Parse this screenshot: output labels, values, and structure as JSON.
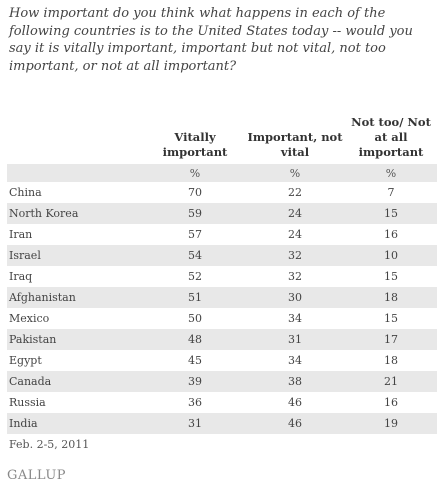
{
  "question": "How important do you think what happens in each of the following countries is to the United States today -- would you say it is vitally important, important but not vital, not too important, or not at all important?",
  "chart_data": {
    "type": "table",
    "columns": [
      "",
      "Vitally important",
      "Important, not vital",
      "Not too/ Not at all important"
    ],
    "units": [
      "",
      "%",
      "%",
      "%"
    ],
    "rows": [
      {
        "country": "China",
        "values": [
          70,
          22,
          7
        ]
      },
      {
        "country": "North Korea",
        "values": [
          59,
          24,
          15
        ]
      },
      {
        "country": "Iran",
        "values": [
          57,
          24,
          16
        ]
      },
      {
        "country": "Israel",
        "values": [
          54,
          32,
          10
        ]
      },
      {
        "country": "Iraq",
        "values": [
          52,
          32,
          15
        ]
      },
      {
        "country": "Afghanistan",
        "values": [
          51,
          30,
          18
        ]
      },
      {
        "country": "Mexico",
        "values": [
          50,
          34,
          15
        ]
      },
      {
        "country": "Pakistan",
        "values": [
          48,
          31,
          17
        ]
      },
      {
        "country": "Egypt",
        "values": [
          45,
          34,
          18
        ]
      },
      {
        "country": "Canada",
        "values": [
          39,
          38,
          21
        ]
      },
      {
        "country": "Russia",
        "values": [
          36,
          46,
          16
        ]
      },
      {
        "country": "India",
        "values": [
          31,
          46,
          19
        ]
      }
    ]
  },
  "footer": {
    "date": "Feb. 2-5, 2011",
    "brand": "GALLUP"
  }
}
